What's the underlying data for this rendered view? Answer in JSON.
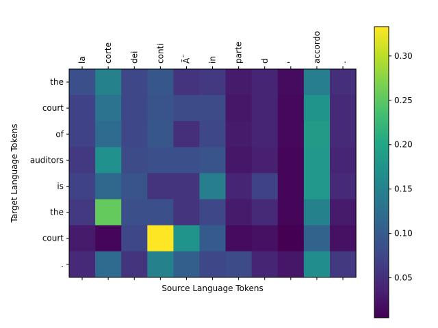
{
  "chart_data": {
    "type": "heatmap",
    "title": "",
    "xlabel": "Source Language Tokens",
    "ylabel": "Target Language Tokens",
    "x_tokens": [
      "la",
      "corte",
      "dei",
      "conti",
      "Ã¨",
      "in",
      "parte",
      "d",
      "'",
      "accordo",
      "."
    ],
    "y_tokens": [
      "the",
      "court",
      "of",
      "auditors",
      "is",
      "the",
      "court",
      "."
    ],
    "x_tick_position": "top",
    "colormap": "viridis",
    "vmin": 0.005,
    "vmax": 0.333,
    "colorbar_ticks": [
      0.05,
      0.1,
      0.15,
      0.2,
      0.25,
      0.3
    ],
    "colorbar_tick_labels": [
      "0.05",
      "0.10",
      "0.15",
      "0.20",
      "0.25",
      "0.30"
    ],
    "values": [
      [
        0.085,
        0.15,
        0.075,
        0.095,
        0.055,
        0.06,
        0.03,
        0.04,
        0.015,
        0.145,
        0.05
      ],
      [
        0.07,
        0.13,
        0.075,
        0.09,
        0.08,
        0.08,
        0.025,
        0.04,
        0.012,
        0.175,
        0.045
      ],
      [
        0.07,
        0.12,
        0.075,
        0.095,
        0.05,
        0.075,
        0.03,
        0.04,
        0.012,
        0.185,
        0.045
      ],
      [
        0.06,
        0.17,
        0.08,
        0.085,
        0.085,
        0.09,
        0.025,
        0.035,
        0.01,
        0.18,
        0.04
      ],
      [
        0.07,
        0.115,
        0.09,
        0.055,
        0.055,
        0.145,
        0.04,
        0.07,
        0.01,
        0.18,
        0.045
      ],
      [
        0.06,
        0.255,
        0.085,
        0.085,
        0.055,
        0.075,
        0.03,
        0.045,
        0.01,
        0.15,
        0.03
      ],
      [
        0.03,
        0.01,
        0.075,
        0.333,
        0.175,
        0.1,
        0.015,
        0.02,
        0.005,
        0.11,
        0.02
      ],
      [
        0.045,
        0.12,
        0.055,
        0.15,
        0.105,
        0.075,
        0.08,
        0.04,
        0.025,
        0.165,
        0.06
      ]
    ]
  }
}
